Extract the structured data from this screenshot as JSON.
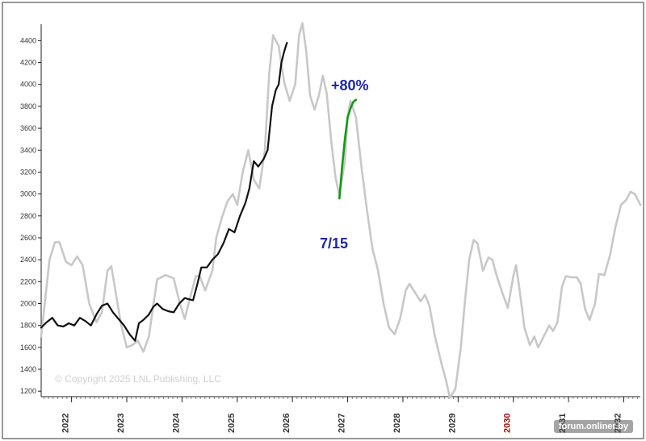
{
  "chart_data": {
    "type": "line",
    "title": "",
    "xlabel": "",
    "ylabel": "",
    "ylim": [
      1150,
      4550
    ],
    "xlim": [
      2021.45,
      2032.3
    ],
    "grid": false,
    "y_ticks": [
      1200,
      1400,
      1600,
      1800,
      2000,
      2200,
      2400,
      2600,
      2800,
      3000,
      3200,
      3400,
      3600,
      3800,
      4000,
      4200,
      4400
    ],
    "x_ticks": [
      {
        "year": 2022,
        "label": "2022"
      },
      {
        "year": 2023,
        "label": "2023"
      },
      {
        "year": 2024,
        "label": "2024"
      },
      {
        "year": 2025,
        "label": "2025"
      },
      {
        "year": 2026,
        "label": "2026"
      },
      {
        "year": 2027,
        "label": "2027"
      },
      {
        "year": 2028,
        "label": "2028"
      },
      {
        "year": 2029,
        "label": "2029"
      },
      {
        "year": 2030,
        "label": "2030",
        "highlight": true
      },
      {
        "year": 2031,
        "label": "2031"
      },
      {
        "year": 2032,
        "label": "2032"
      }
    ],
    "series": [
      {
        "role": "cycle-projection",
        "color": "#c8c8c8",
        "points": [
          [
            2021.45,
            1700
          ],
          [
            2021.6,
            2400
          ],
          [
            2021.7,
            2560
          ],
          [
            2021.78,
            2560
          ],
          [
            2021.9,
            2380
          ],
          [
            2022.0,
            2350
          ],
          [
            2022.1,
            2430
          ],
          [
            2022.2,
            2350
          ],
          [
            2022.32,
            2000
          ],
          [
            2022.45,
            1830
          ],
          [
            2022.55,
            1920
          ],
          [
            2022.65,
            2300
          ],
          [
            2022.72,
            2340
          ],
          [
            2022.8,
            2100
          ],
          [
            2022.9,
            1800
          ],
          [
            2023.0,
            1600
          ],
          [
            2023.1,
            1620
          ],
          [
            2023.2,
            1660
          ],
          [
            2023.3,
            1560
          ],
          [
            2023.4,
            1700
          ],
          [
            2023.48,
            1980
          ],
          [
            2023.55,
            2220
          ],
          [
            2023.7,
            2260
          ],
          [
            2023.85,
            2230
          ],
          [
            2023.95,
            2020
          ],
          [
            2024.05,
            1860
          ],
          [
            2024.15,
            2060
          ],
          [
            2024.25,
            2250
          ],
          [
            2024.32,
            2250
          ],
          [
            2024.42,
            2120
          ],
          [
            2024.55,
            2300
          ],
          [
            2024.62,
            2600
          ],
          [
            2024.72,
            2780
          ],
          [
            2024.82,
            2930
          ],
          [
            2024.92,
            3000
          ],
          [
            2025.0,
            2900
          ],
          [
            2025.1,
            3200
          ],
          [
            2025.2,
            3400
          ],
          [
            2025.3,
            3130
          ],
          [
            2025.4,
            3050
          ],
          [
            2025.5,
            3400
          ],
          [
            2025.58,
            4100
          ],
          [
            2025.65,
            4450
          ],
          [
            2025.75,
            4350
          ],
          [
            2025.85,
            4020
          ],
          [
            2025.95,
            3850
          ],
          [
            2026.05,
            4000
          ],
          [
            2026.12,
            4450
          ],
          [
            2026.18,
            4560
          ],
          [
            2026.25,
            4300
          ],
          [
            2026.32,
            3900
          ],
          [
            2026.4,
            3770
          ],
          [
            2026.48,
            3900
          ],
          [
            2026.55,
            4080
          ],
          [
            2026.62,
            3920
          ],
          [
            2026.7,
            3500
          ],
          [
            2026.78,
            3150
          ],
          [
            2026.85,
            2990
          ],
          [
            2026.95,
            3300
          ],
          [
            2027.0,
            3700
          ],
          [
            2027.05,
            3850
          ],
          [
            2027.15,
            3700
          ],
          [
            2027.25,
            3250
          ],
          [
            2027.35,
            2850
          ],
          [
            2027.45,
            2500
          ],
          [
            2027.55,
            2300
          ],
          [
            2027.65,
            2000
          ],
          [
            2027.75,
            1780
          ],
          [
            2027.85,
            1720
          ],
          [
            2027.95,
            1860
          ],
          [
            2028.05,
            2120
          ],
          [
            2028.12,
            2180
          ],
          [
            2028.22,
            2100
          ],
          [
            2028.32,
            2020
          ],
          [
            2028.4,
            2080
          ],
          [
            2028.48,
            1980
          ],
          [
            2028.58,
            1700
          ],
          [
            2028.7,
            1450
          ],
          [
            2028.78,
            1300
          ],
          [
            2028.85,
            1140
          ],
          [
            2028.95,
            1220
          ],
          [
            2029.05,
            1600
          ],
          [
            2029.12,
            2000
          ],
          [
            2029.2,
            2400
          ],
          [
            2029.28,
            2580
          ],
          [
            2029.35,
            2550
          ],
          [
            2029.45,
            2300
          ],
          [
            2029.55,
            2420
          ],
          [
            2029.62,
            2400
          ],
          [
            2029.7,
            2250
          ],
          [
            2029.8,
            2100
          ],
          [
            2029.9,
            1960
          ],
          [
            2030.0,
            2250
          ],
          [
            2030.05,
            2350
          ],
          [
            2030.12,
            2100
          ],
          [
            2030.2,
            1780
          ],
          [
            2030.3,
            1620
          ],
          [
            2030.38,
            1700
          ],
          [
            2030.45,
            1600
          ],
          [
            2030.55,
            1700
          ],
          [
            2030.65,
            1800
          ],
          [
            2030.72,
            1750
          ],
          [
            2030.8,
            1830
          ],
          [
            2030.88,
            2150
          ],
          [
            2030.95,
            2250
          ],
          [
            2031.05,
            2240
          ],
          [
            2031.15,
            2240
          ],
          [
            2031.22,
            2180
          ],
          [
            2031.3,
            1950
          ],
          [
            2031.38,
            1850
          ],
          [
            2031.48,
            2000
          ],
          [
            2031.55,
            2270
          ],
          [
            2031.65,
            2260
          ],
          [
            2031.75,
            2440
          ],
          [
            2031.85,
            2700
          ],
          [
            2031.95,
            2900
          ],
          [
            2032.05,
            2950
          ],
          [
            2032.12,
            3020
          ],
          [
            2032.2,
            3000
          ],
          [
            2032.3,
            2900
          ]
        ]
      },
      {
        "role": "actual-price",
        "color": "#111111",
        "points": [
          [
            2021.45,
            1780
          ],
          [
            2021.55,
            1830
          ],
          [
            2021.65,
            1870
          ],
          [
            2021.75,
            1800
          ],
          [
            2021.85,
            1790
          ],
          [
            2021.95,
            1820
          ],
          [
            2022.05,
            1800
          ],
          [
            2022.15,
            1870
          ],
          [
            2022.25,
            1840
          ],
          [
            2022.35,
            1800
          ],
          [
            2022.45,
            1900
          ],
          [
            2022.55,
            1980
          ],
          [
            2022.65,
            2000
          ],
          [
            2022.75,
            1920
          ],
          [
            2022.85,
            1860
          ],
          [
            2022.95,
            1800
          ],
          [
            2023.05,
            1720
          ],
          [
            2023.15,
            1660
          ],
          [
            2023.22,
            1820
          ],
          [
            2023.3,
            1850
          ],
          [
            2023.4,
            1900
          ],
          [
            2023.48,
            1970
          ],
          [
            2023.55,
            2000
          ],
          [
            2023.65,
            1950
          ],
          [
            2023.75,
            1930
          ],
          [
            2023.85,
            1920
          ],
          [
            2023.95,
            2000
          ],
          [
            2024.05,
            2050
          ],
          [
            2024.12,
            2040
          ],
          [
            2024.2,
            2030
          ],
          [
            2024.28,
            2180
          ],
          [
            2024.35,
            2330
          ],
          [
            2024.45,
            2330
          ],
          [
            2024.55,
            2400
          ],
          [
            2024.65,
            2450
          ],
          [
            2024.75,
            2550
          ],
          [
            2024.85,
            2680
          ],
          [
            2024.95,
            2650
          ],
          [
            2025.05,
            2800
          ],
          [
            2025.15,
            2920
          ],
          [
            2025.22,
            3050
          ],
          [
            2025.3,
            3300
          ],
          [
            2025.38,
            3250
          ],
          [
            2025.48,
            3320
          ],
          [
            2025.55,
            3400
          ],
          [
            2025.63,
            3800
          ],
          [
            2025.7,
            3950
          ],
          [
            2025.75,
            4000
          ],
          [
            2025.8,
            4200
          ],
          [
            2025.85,
            4300
          ],
          [
            2025.9,
            4380
          ]
        ]
      },
      {
        "role": "highlighted-rally",
        "color": "#139a13",
        "points": [
          [
            2026.85,
            2960
          ],
          [
            2026.9,
            3250
          ],
          [
            2026.95,
            3500
          ],
          [
            2027.0,
            3700
          ],
          [
            2027.05,
            3780
          ],
          [
            2027.1,
            3840
          ],
          [
            2027.15,
            3860
          ]
        ]
      }
    ],
    "annotations": [
      {
        "text": "+80%",
        "color": "#1f27a8"
      },
      {
        "text": "7/15",
        "color": "#1f27a8"
      },
      {
        "text": "© Copyright 2025 LNL Publishing, LLC",
        "color": "#d0d0d0"
      }
    ]
  },
  "watermark": "forum.onliner.by",
  "colors": {
    "axis": "#222222",
    "background": "#ffffff",
    "highlight_year": "#a01010"
  }
}
